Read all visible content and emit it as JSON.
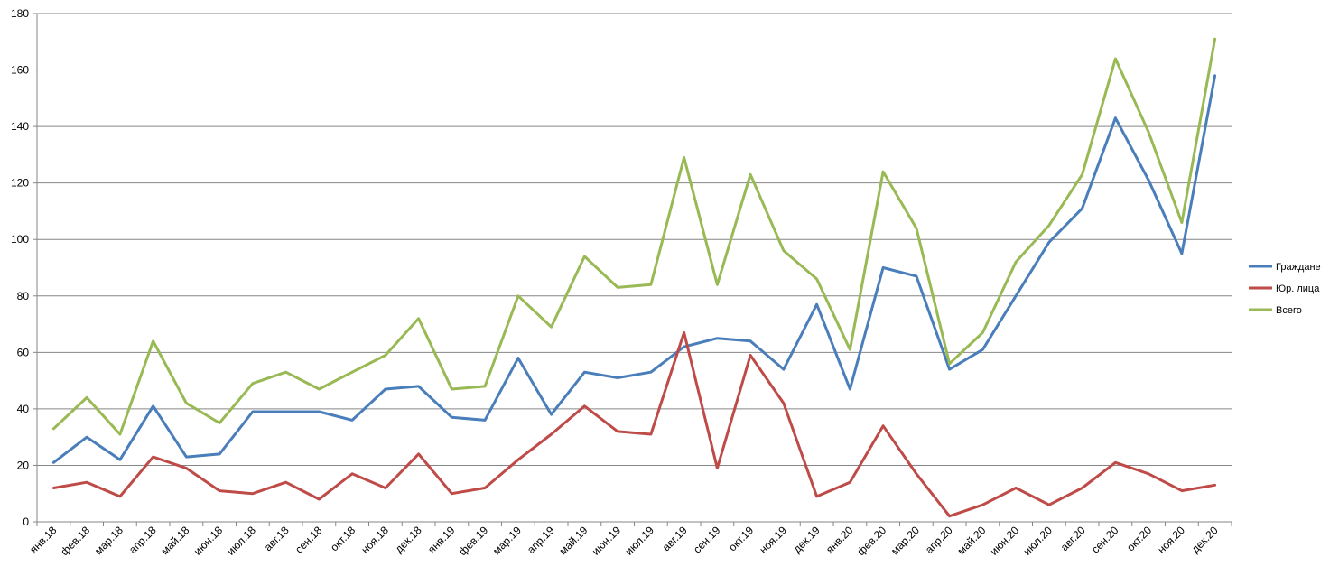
{
  "chart_data": {
    "type": "line",
    "title": "",
    "xlabel": "",
    "ylabel": "",
    "ylim": [
      0,
      180
    ],
    "yticks": [
      0,
      20,
      40,
      60,
      80,
      100,
      120,
      140,
      160,
      180
    ],
    "grid": true,
    "legend_position": "right",
    "categories": [
      "янв.18",
      "фев.18",
      "мар.18",
      "апр.18",
      "май.18",
      "июн.18",
      "июл.18",
      "авг.18",
      "сен.18",
      "окт.18",
      "ноя.18",
      "дек.18",
      "янв.19",
      "фев.19",
      "мар.19",
      "апр.19",
      "май.19",
      "июн.19",
      "июл.19",
      "авг.19",
      "сен.19",
      "окт.19",
      "ноя.19",
      "дек.19",
      "янв.20",
      "фев.20",
      "мар.20",
      "апр.20",
      "май.20",
      "июн.20",
      "июл.20",
      "авг.20",
      "сен.20",
      "окт.20",
      "ноя.20",
      "дек.20"
    ],
    "series": [
      {
        "name": "Граждане",
        "color": "#4a7ebb",
        "values": [
          21,
          30,
          22,
          41,
          23,
          24,
          39,
          39,
          39,
          36,
          47,
          48,
          37,
          36,
          58,
          38,
          53,
          51,
          53,
          62,
          65,
          64,
          54,
          77,
          47,
          90,
          87,
          54,
          61,
          80,
          99,
          111,
          143,
          121,
          95,
          158
        ]
      },
      {
        "name": "Юр. лица",
        "color": "#be4b48",
        "values": [
          12,
          14,
          9,
          23,
          19,
          11,
          10,
          14,
          8,
          17,
          12,
          24,
          10,
          12,
          22,
          31,
          41,
          32,
          31,
          67,
          19,
          59,
          42,
          9,
          14,
          34,
          17,
          2,
          6,
          12,
          6,
          12,
          21,
          17,
          11,
          13
        ]
      },
      {
        "name": "Всего",
        "color": "#98b954",
        "values": [
          33,
          44,
          31,
          64,
          42,
          35,
          49,
          53,
          47,
          53,
          59,
          72,
          47,
          48,
          80,
          69,
          94,
          83,
          84,
          129,
          84,
          123,
          96,
          86,
          61,
          124,
          104,
          56,
          67,
          92,
          105,
          123,
          164,
          138,
          106,
          171
        ]
      }
    ]
  }
}
